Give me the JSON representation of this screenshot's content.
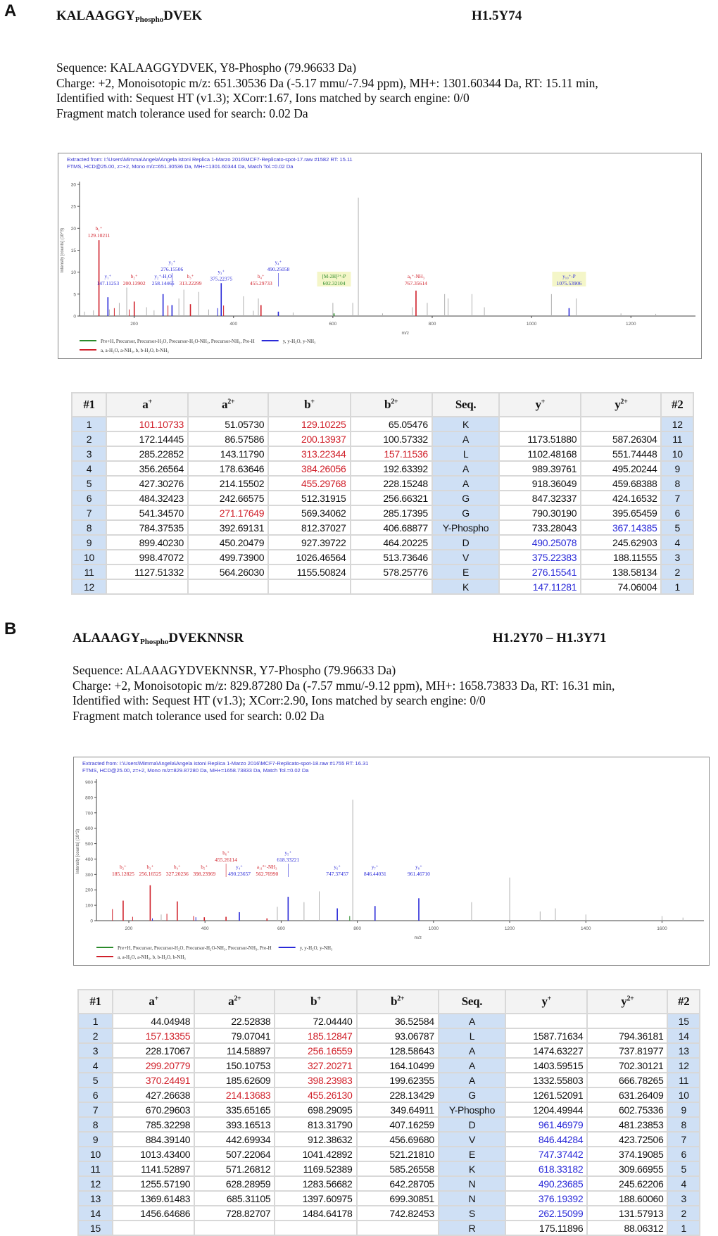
{
  "colors": {
    "red": "#d0202a",
    "blue": "#2a2ad8",
    "green": "#2a8a2a",
    "gray": "#b0b0b0",
    "seq_bg": "#cfe0f5"
  },
  "panels": [
    {
      "letter": "A",
      "title_pre": "KALAAGGY",
      "title_sub": "Phospho",
      "title_post": "DVEK",
      "histone": "H1.5Y74",
      "info": [
        "Sequence: KALAAGGYDVEK, Y8-Phospho (79.96633 Da)",
        "Charge: +2,   Monoisotopic m/z: 651.30536 Da (-5.17 mmu/-7.94 ppm),   MH+: 1301.60344 Da,   RT: 15.11 min,",
        "Identified with: Sequest HT (v1.3); XCorr:1.67, Ions matched by search engine: 0/0",
        "Fragment match tolerance used for search: 0.02 Da"
      ],
      "headers": [
        "#1",
        "a",
        "a",
        "b",
        "b",
        "Seq.",
        "y",
        "y",
        "#2"
      ],
      "header_sups": [
        "",
        "+",
        "2+",
        "+",
        "2+",
        "",
        "+",
        "2+",
        ""
      ],
      "rows": [
        [
          "1",
          "101.10733",
          "51.05730",
          "129.10225",
          "65.05476",
          "K",
          "",
          "",
          "12"
        ],
        [
          "2",
          "172.14445",
          "86.57586",
          "200.13937",
          "100.57332",
          "A",
          "1173.51880",
          "587.26304",
          "11"
        ],
        [
          "3",
          "285.22852",
          "143.11790",
          "313.22344",
          "157.11536",
          "L",
          "1102.48168",
          "551.74448",
          "10"
        ],
        [
          "4",
          "356.26564",
          "178.63646",
          "384.26056",
          "192.63392",
          "A",
          "989.39761",
          "495.20244",
          "9"
        ],
        [
          "5",
          "427.30276",
          "214.15502",
          "455.29768",
          "228.15248",
          "A",
          "918.36049",
          "459.68388",
          "8"
        ],
        [
          "6",
          "484.32423",
          "242.66575",
          "512.31915",
          "256.66321",
          "G",
          "847.32337",
          "424.16532",
          "7"
        ],
        [
          "7",
          "541.34570",
          "271.17649",
          "569.34062",
          "285.17395",
          "G",
          "790.30190",
          "395.65459",
          "6"
        ],
        [
          "8",
          "784.37535",
          "392.69131",
          "812.37027",
          "406.68877",
          "Y-Phospho",
          "733.28043",
          "367.14385",
          "5"
        ],
        [
          "9",
          "899.40230",
          "450.20479",
          "927.39722",
          "464.20225",
          "D",
          "490.25078",
          "245.62903",
          "4"
        ],
        [
          "10",
          "998.47072",
          "499.73900",
          "1026.46564",
          "513.73646",
          "V",
          "375.22383",
          "188.11555",
          "3"
        ],
        [
          "11",
          "1127.51332",
          "564.26030",
          "1155.50824",
          "578.25776",
          "E",
          "276.15541",
          "138.58134",
          "2"
        ],
        [
          "12",
          "",
          "",
          "",
          "",
          "K",
          "147.11281",
          "74.06004",
          "1"
        ]
      ],
      "row_colors": [
        ".r.r.....",
        "...r.....",
        "...rr....",
        "...r.....",
        "...r.....",
        ".........",
        "..r......",
        ".......b.",
        "......b..",
        "......b..",
        "......b..",
        "......b.."
      ]
    },
    {
      "letter": "B",
      "title_pre": "ALAAAGY",
      "title_sub": "Phospho",
      "title_post": "DVEKNNSR",
      "histone": "H1.2Y70 – H1.3Y71",
      "info": [
        "Sequence: ALAAAGYDVEKNNSR, Y7-Phospho (79.96633 Da)",
        "Charge: +2,   Monoisotopic m/z: 829.87280 Da (-7.57 mmu/-9.12 ppm),   MH+: 1658.73833 Da,   RT: 16.31 min,",
        "Identified with: Sequest HT (v1.3); XCorr:2.90, Ions matched by search engine: 0/0",
        "Fragment match tolerance used for search: 0.02 Da"
      ],
      "headers": [
        "#1",
        "a",
        "a",
        "b",
        "b",
        "Seq.",
        "y",
        "y",
        "#2"
      ],
      "header_sups": [
        "",
        "+",
        "2+",
        "+",
        "2+",
        "",
        "+",
        "2+",
        ""
      ],
      "rows": [
        [
          "1",
          "44.04948",
          "22.52838",
          "72.04440",
          "36.52584",
          "A",
          "",
          "",
          "15"
        ],
        [
          "2",
          "157.13355",
          "79.07041",
          "185.12847",
          "93.06787",
          "L",
          "1587.71634",
          "794.36181",
          "14"
        ],
        [
          "3",
          "228.17067",
          "114.58897",
          "256.16559",
          "128.58643",
          "A",
          "1474.63227",
          "737.81977",
          "13"
        ],
        [
          "4",
          "299.20779",
          "150.10753",
          "327.20271",
          "164.10499",
          "A",
          "1403.59515",
          "702.30121",
          "12"
        ],
        [
          "5",
          "370.24491",
          "185.62609",
          "398.23983",
          "199.62355",
          "A",
          "1332.55803",
          "666.78265",
          "11"
        ],
        [
          "6",
          "427.26638",
          "214.13683",
          "455.26130",
          "228.13429",
          "G",
          "1261.52091",
          "631.26409",
          "10"
        ],
        [
          "7",
          "670.29603",
          "335.65165",
          "698.29095",
          "349.64911",
          "Y-Phospho",
          "1204.49944",
          "602.75336",
          "9"
        ],
        [
          "8",
          "785.32298",
          "393.16513",
          "813.31790",
          "407.16259",
          "D",
          "961.46979",
          "481.23853",
          "8"
        ],
        [
          "9",
          "884.39140",
          "442.69934",
          "912.38632",
          "456.69680",
          "V",
          "846.44284",
          "423.72506",
          "7"
        ],
        [
          "10",
          "1013.43400",
          "507.22064",
          "1041.42892",
          "521.21810",
          "E",
          "747.37442",
          "374.19085",
          "6"
        ],
        [
          "11",
          "1141.52897",
          "571.26812",
          "1169.52389",
          "585.26558",
          "K",
          "618.33182",
          "309.66955",
          "5"
        ],
        [
          "12",
          "1255.57190",
          "628.28959",
          "1283.56682",
          "642.28705",
          "N",
          "490.23685",
          "245.62206",
          "4"
        ],
        [
          "13",
          "1369.61483",
          "685.31105",
          "1397.60975",
          "699.30851",
          "N",
          "376.19392",
          "188.60060",
          "3"
        ],
        [
          "14",
          "1456.64686",
          "728.82707",
          "1484.64178",
          "742.82453",
          "S",
          "262.15099",
          "131.57913",
          "2"
        ],
        [
          "15",
          "",
          "",
          "",
          "",
          "R",
          "175.11896",
          "88.06312",
          "1"
        ]
      ],
      "row_colors": [
        ".........",
        ".r.r.....",
        "...r.....",
        ".r.r.....",
        ".r.r.....",
        "..rr.....",
        ".........",
        "......b..",
        "......b..",
        "......b..",
        "......b..",
        "......b..",
        "......b..",
        "......b..",
        "........."
      ]
    }
  ],
  "chart_data": [
    {
      "type": "bar",
      "title": "Extracted from: I:\\Users\\Mimma\\Angela\\Angela istoni Replica 1-Marzo 2016\\MCF7-Replicato-spot-17.raw  #1582  RT: 15.11",
      "subtitle": "FTMS, HCD@25.00, z=+2, Mono m/z=651.30536 Da, MH+=1301.60344 Da, Match Tol.=0.02 Da",
      "xlabel": "m/z",
      "ylabel": "Intensity [counts] (10^3)",
      "xlim": [
        90,
        1330
      ],
      "ylim": [
        0,
        30
      ],
      "xticks": [
        200,
        400,
        600,
        800,
        1000,
        1200
      ],
      "yticks": [
        0,
        5,
        10,
        15,
        20,
        25,
        30
      ],
      "legend": [
        "Pre+H, Precursor, Precursor-H₂O, Precursor-H₂O-NH₃, Precursor-NH₃, Pre-H",
        "y, y-H₂O, y-NH₃",
        "a, a-H₂O, a-NH₃, b, b-H₂O, b-NH₃"
      ],
      "legend_colors": [
        "g",
        "b",
        "r"
      ],
      "peaks": [
        {
          "mz": 129.1,
          "i": 17.3,
          "c": "r",
          "ion": "b₁⁺",
          "val": "129.10211"
        },
        {
          "mz": 147.11,
          "i": 4.3,
          "c": "b",
          "ion": "y₁⁺",
          "val": "147.11253"
        },
        {
          "mz": 200.14,
          "i": 3.3,
          "c": "r",
          "ion": "b₂⁺",
          "val": "200.13902"
        },
        {
          "mz": 258.14,
          "i": 5.0,
          "c": "b",
          "ion": "y₂⁺-H₂O",
          "val": "258.14465"
        },
        {
          "mz": 276.16,
          "i": 2.5,
          "c": "b",
          "ion": "y₂⁺",
          "val": "276.15506"
        },
        {
          "mz": 313.22,
          "i": 2.7,
          "c": "r",
          "ion": "b₃⁺",
          "val": "313.22299"
        },
        {
          "mz": 375.22,
          "i": 7.5,
          "c": "b",
          "ion": "y₃⁺",
          "val": "375.22375"
        },
        {
          "mz": 455.3,
          "i": 2.5,
          "c": "r",
          "ion": "b₄⁺",
          "val": "455.29733"
        },
        {
          "mz": 490.25,
          "i": 1.0,
          "c": "b",
          "ion": "y₄⁺",
          "val": "490.25058"
        },
        {
          "mz": 602.32,
          "i": 0.6,
          "c": "g",
          "ion": "[M-2H]²⁺-P",
          "val": "602.32104"
        },
        {
          "mz": 767.36,
          "i": 5.8,
          "c": "r",
          "ion": "a₈⁺-NH₃",
          "val": "767.35614"
        },
        {
          "mz": 1075.54,
          "i": 1.8,
          "c": "b",
          "ion": "y₁₀⁺-P",
          "val": "1075.53906"
        }
      ],
      "other_peaks": [
        [
          651.3,
          27,
          "k"
        ],
        [
          100,
          1,
          "k"
        ],
        [
          118,
          1.3,
          "k"
        ],
        [
          150,
          1.5,
          "k"
        ],
        [
          170,
          3,
          "k"
        ],
        [
          185,
          6.5,
          "k"
        ],
        [
          160,
          1.8,
          "r"
        ],
        [
          190,
          1.5,
          "r"
        ],
        [
          225,
          2,
          "k"
        ],
        [
          240,
          1.3,
          "k"
        ],
        [
          268,
          2.4,
          "r"
        ],
        [
          290,
          4,
          "k"
        ],
        [
          300,
          6,
          "k"
        ],
        [
          330,
          5.5,
          "k"
        ],
        [
          350,
          1.5,
          "k"
        ],
        [
          368,
          1.8,
          "b"
        ],
        [
          380,
          2.4,
          "r"
        ],
        [
          420,
          4.5,
          "k"
        ],
        [
          440,
          1.2,
          "k"
        ],
        [
          450,
          4,
          "k"
        ],
        [
          520,
          0.8,
          "k"
        ],
        [
          600,
          3,
          "k"
        ],
        [
          640,
          3,
          "k"
        ],
        [
          700,
          0.6,
          "k"
        ],
        [
          760,
          2,
          "k"
        ],
        [
          790,
          3,
          "k"
        ],
        [
          825,
          5,
          "k"
        ],
        [
          832,
          4,
          "k"
        ],
        [
          880,
          5,
          "k"
        ],
        [
          905,
          2,
          "k"
        ],
        [
          1040,
          5,
          "k"
        ],
        [
          1090,
          4,
          "k"
        ],
        [
          1180,
          0.6,
          "k"
        ],
        [
          1250,
          0.5,
          "k"
        ]
      ]
    },
    {
      "type": "bar",
      "title": "Extracted from: I:\\Users\\Mimma\\Angela\\Angela istoni Replica 1-Marzo 2016\\MCF7-Replicato-spot-18.raw  #1755  RT: 16.31",
      "subtitle": "FTMS, HCD@25.00, z=+2, Mono m/z=829.87280 Da, MH+=1658.73833 Da, Match Tol.=0.02 Da",
      "xlabel": "m/z",
      "ylabel": "Intensity [counts] (10^3)",
      "xlim": [
        115,
        1710
      ],
      "ylim": [
        0,
        900
      ],
      "xticks": [
        200,
        400,
        600,
        800,
        1000,
        1200,
        1400,
        1600
      ],
      "yticks": [
        0,
        100,
        200,
        300,
        400,
        500,
        600,
        700,
        800,
        900
      ],
      "legend": [
        "Pre+H, Precursor, Precursor-H₂O, Precursor-H₂O-NH₃, Precursor-NH₃, Pre-H",
        "y, y-H₂O, y-NH₃",
        "a, a-H₂O, a-NH₃, b, b-H₂O, b-NH₃"
      ],
      "legend_colors": [
        "g",
        "b",
        "r"
      ],
      "peaks": [
        {
          "mz": 185.13,
          "i": 130,
          "c": "r",
          "ion": "b₂⁺",
          "val": "185.12825"
        },
        {
          "mz": 256.17,
          "i": 230,
          "c": "r",
          "ion": "b₃⁺",
          "val": "256.16525"
        },
        {
          "mz": 327.2,
          "i": 125,
          "c": "r",
          "ion": "b₄⁺",
          "val": "327.20236"
        },
        {
          "mz": 398.24,
          "i": 22,
          "c": "r",
          "ion": "b₅⁺",
          "val": "398.23969"
        },
        {
          "mz": 455.26,
          "i": 25,
          "c": "r",
          "ion": "b₆⁺",
          "val": "455.26114"
        },
        {
          "mz": 490.24,
          "i": 55,
          "c": "b",
          "ion": "y₄⁺",
          "val": "490.23657"
        },
        {
          "mz": 562.77,
          "i": 15,
          "c": "r",
          "ion": "a₁₁²⁺-NH₃",
          "val": "562.76990"
        },
        {
          "mz": 618.33,
          "i": 155,
          "c": "b",
          "ion": "y₅⁺",
          "val": "618.33221"
        },
        {
          "mz": 747.37,
          "i": 80,
          "c": "b",
          "ion": "y₆⁺",
          "val": "747.37457"
        },
        {
          "mz": 846.44,
          "i": 95,
          "c": "b",
          "ion": "y₇⁺",
          "val": "846.44031"
        },
        {
          "mz": 961.47,
          "i": 145,
          "c": "b",
          "ion": "y₈⁺",
          "val": "961.46710"
        }
      ],
      "other_peaks": [
        [
          788,
          785,
          "k"
        ],
        [
          157,
          75,
          "r"
        ],
        [
          210,
          25,
          "r"
        ],
        [
          262,
          15,
          "b"
        ],
        [
          285,
          40,
          "k"
        ],
        [
          300,
          45,
          "r"
        ],
        [
          370,
          30,
          "r"
        ],
        [
          376,
          22,
          "b"
        ],
        [
          590,
          90,
          "k"
        ],
        [
          660,
          120,
          "k"
        ],
        [
          700,
          190,
          "k"
        ],
        [
          780,
          30,
          "g"
        ],
        [
          1100,
          120,
          "k"
        ],
        [
          1200,
          280,
          "k"
        ],
        [
          1280,
          60,
          "k"
        ],
        [
          1320,
          80,
          "k"
        ],
        [
          1400,
          40,
          "k"
        ],
        [
          1600,
          30,
          "k"
        ],
        [
          1655,
          20,
          "k"
        ]
      ]
    }
  ]
}
